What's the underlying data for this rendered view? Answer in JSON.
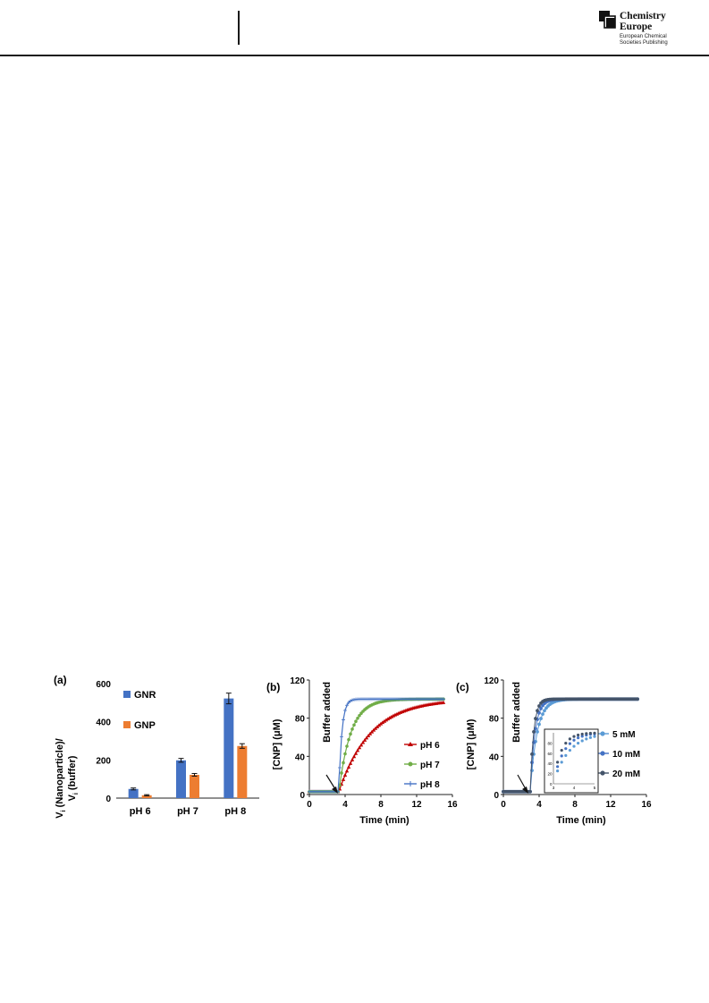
{
  "header": {
    "brand_line1": "Chemistry",
    "brand_line2": "Europe",
    "publisher_line1": "European Chemical",
    "publisher_line2": "Societies Publishing"
  },
  "panels": {
    "a": {
      "letter": "(a)"
    },
    "b": {
      "letter": "(b)",
      "annotation": "Buffer added"
    },
    "c": {
      "letter": "(c)",
      "annotation": "Buffer added"
    }
  },
  "chart_data": [
    {
      "panel": "a",
      "type": "bar",
      "categories": [
        "pH 6",
        "pH 7",
        "pH 8"
      ],
      "series": [
        {
          "name": "GNR",
          "color": "#4472C4",
          "values": [
            48,
            198,
            522
          ],
          "errors": [
            5,
            10,
            28
          ]
        },
        {
          "name": "GNP",
          "color": "#ED7D31",
          "values": [
            15,
            122,
            273
          ],
          "errors": [
            3,
            7,
            12
          ]
        }
      ],
      "ylabel_line1": "V",
      "ylabel_sub": "i",
      "ylabel_rest1": " (Nanoparticle)/",
      "ylabel_line2": "V",
      "ylabel_rest2": " (buffer)",
      "ylim": [
        0,
        600
      ],
      "yticks": [
        "0",
        "200",
        "400",
        "600"
      ],
      "legend_placement": "left"
    },
    {
      "panel": "b",
      "type": "line",
      "xlabel": "Time (min)",
      "ylabel": "[CNP] (μM)",
      "xlim": [
        0,
        16
      ],
      "ylim": [
        0,
        120
      ],
      "xticks": [
        "0",
        "4",
        "8",
        "12",
        "16"
      ],
      "yticks": [
        "0",
        "40",
        "80",
        "120"
      ],
      "t0": 3.3,
      "t_end": 15,
      "baseline": 3,
      "plateau": 100,
      "series": [
        {
          "name": "pH 6",
          "color": "#C00000",
          "marker": "triangle",
          "k": 0.28
        },
        {
          "name": "pH 7",
          "color": "#70AD47",
          "marker": "circle",
          "k": 0.75
        },
        {
          "name": "pH 8",
          "color": "#4472C4",
          "marker": "plus",
          "k": 3.0
        }
      ]
    },
    {
      "panel": "c",
      "type": "scatter",
      "xlabel": "Time (min)",
      "ylabel": "[CNP] (μM)",
      "xlim": [
        0,
        16
      ],
      "ylim": [
        0,
        120
      ],
      "xticks": [
        "0",
        "4",
        "8",
        "12",
        "16"
      ],
      "yticks": [
        "0",
        "40",
        "80",
        "120"
      ],
      "t0": 3.0,
      "t_end": 15,
      "baseline": 3,
      "plateau": 100,
      "series": [
        {
          "name": "5 mM",
          "color": "#5B9BD5",
          "k": 1.3
        },
        {
          "name": "10 mM",
          "color": "#4472C4",
          "k": 1.9
        },
        {
          "name": "20 mM",
          "color": "#44546A",
          "k": 2.6
        }
      ],
      "inset": {
        "xlim": [
          3,
          5
        ],
        "ylim": [
          0,
          100
        ],
        "xticks": [
          "3",
          "4",
          "5"
        ],
        "yticks": [
          "0",
          "20",
          "40",
          "60",
          "80"
        ]
      }
    }
  ]
}
